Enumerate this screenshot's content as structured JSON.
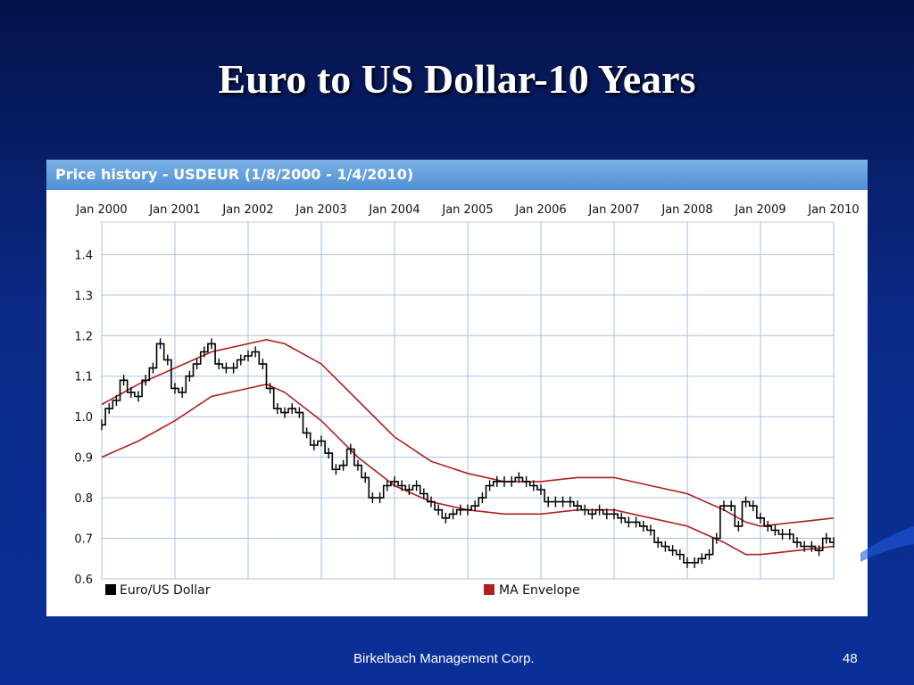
{
  "slide": {
    "title": "Euro to US Dollar-10 Years",
    "footer": "Birkelbach Management Corp.",
    "page_number": "48"
  },
  "colors": {
    "background": "#0b2a86",
    "header_bar": "#5b98d8",
    "price_line": "#000000",
    "envelope": "#b0201f",
    "grid": "#a9c2e4"
  },
  "chart_data": {
    "type": "line",
    "title": "Price history - USDEUR (1/8/2000 - 1/4/2010)",
    "x_tick_labels": [
      "Jan 2000",
      "Jan 2001",
      "Jan 2002",
      "Jan 2003",
      "Jan 2004",
      "Jan 2005",
      "Jan 2006",
      "Jan 2007",
      "Jan 2008",
      "Jan 2009",
      "Jan 2010"
    ],
    "y_tick_labels": [
      "1.4",
      "1.3",
      "1.2",
      "1.1",
      "1.0",
      "0.9",
      "0.8",
      "0.7",
      "0.6"
    ],
    "y_ticks": [
      1.4,
      1.3,
      1.2,
      1.1,
      1.0,
      0.9,
      0.8,
      0.7,
      0.6
    ],
    "xlim": [
      2000.0,
      2010.0
    ],
    "ylim": [
      0.6,
      1.48
    ],
    "grid": true,
    "legend_position": "bottom",
    "series": [
      {
        "name": "Euro/US Dollar",
        "color": "#000000",
        "x": [
          2000.0,
          2000.1,
          2000.2,
          2000.3,
          2000.4,
          2000.5,
          2000.6,
          2000.7,
          2000.8,
          2000.9,
          2001.0,
          2001.1,
          2001.2,
          2001.3,
          2001.4,
          2001.5,
          2001.6,
          2001.7,
          2001.8,
          2001.9,
          2002.0,
          2002.1,
          2002.2,
          2002.3,
          2002.4,
          2002.5,
          2002.6,
          2002.7,
          2002.8,
          2002.9,
          2003.0,
          2003.1,
          2003.2,
          2003.3,
          2003.4,
          2003.5,
          2003.6,
          2003.7,
          2003.8,
          2003.9,
          2004.0,
          2004.1,
          2004.2,
          2004.3,
          2004.4,
          2004.5,
          2004.6,
          2004.7,
          2004.8,
          2004.9,
          2005.0,
          2005.1,
          2005.2,
          2005.3,
          2005.4,
          2005.5,
          2005.6,
          2005.7,
          2005.8,
          2005.9,
          2006.0,
          2006.1,
          2006.2,
          2006.3,
          2006.4,
          2006.5,
          2006.6,
          2006.7,
          2006.8,
          2006.9,
          2007.0,
          2007.1,
          2007.2,
          2007.3,
          2007.4,
          2007.5,
          2007.6,
          2007.7,
          2007.8,
          2007.9,
          2008.0,
          2008.1,
          2008.2,
          2008.3,
          2008.4,
          2008.5,
          2008.6,
          2008.7,
          2008.8,
          2008.9,
          2009.0,
          2009.1,
          2009.2,
          2009.3,
          2009.4,
          2009.5,
          2009.6,
          2009.7,
          2009.8,
          2009.9,
          2010.0
        ],
        "values": [
          0.98,
          1.02,
          1.04,
          1.09,
          1.06,
          1.05,
          1.09,
          1.12,
          1.18,
          1.14,
          1.07,
          1.06,
          1.1,
          1.13,
          1.16,
          1.18,
          1.13,
          1.12,
          1.12,
          1.14,
          1.15,
          1.16,
          1.13,
          1.07,
          1.02,
          1.01,
          1.02,
          1.01,
          0.96,
          0.93,
          0.94,
          0.91,
          0.87,
          0.88,
          0.92,
          0.88,
          0.85,
          0.8,
          0.8,
          0.83,
          0.84,
          0.83,
          0.82,
          0.83,
          0.81,
          0.79,
          0.77,
          0.75,
          0.76,
          0.77,
          0.77,
          0.78,
          0.8,
          0.83,
          0.84,
          0.84,
          0.84,
          0.85,
          0.84,
          0.83,
          0.82,
          0.79,
          0.79,
          0.79,
          0.79,
          0.78,
          0.77,
          0.76,
          0.77,
          0.76,
          0.76,
          0.75,
          0.74,
          0.74,
          0.73,
          0.72,
          0.69,
          0.68,
          0.67,
          0.66,
          0.64,
          0.64,
          0.65,
          0.66,
          0.7,
          0.78,
          0.78,
          0.73,
          0.79,
          0.78,
          0.75,
          0.73,
          0.72,
          0.71,
          0.71,
          0.69,
          0.68,
          0.68,
          0.67,
          0.7,
          0.69
        ]
      },
      {
        "name": "MA Envelope",
        "color": "#b0201f",
        "bands": [
          {
            "x": [
              2000.0,
              2000.5,
              2001.0,
              2001.5,
              2002.0,
              2002.25,
              2002.5,
              2003.0,
              2003.5,
              2004.0,
              2004.5,
              2005.0,
              2005.5,
              2006.0,
              2006.5,
              2007.0,
              2007.5,
              2008.0,
              2008.5,
              2008.8,
              2009.0,
              2009.5,
              2010.0
            ],
            "values": [
              1.03,
              1.08,
              1.12,
              1.16,
              1.18,
              1.19,
              1.18,
              1.13,
              1.04,
              0.95,
              0.89,
              0.86,
              0.84,
              0.84,
              0.85,
              0.85,
              0.83,
              0.81,
              0.77,
              0.74,
              0.73,
              0.74,
              0.75
            ]
          },
          {
            "x": [
              2000.0,
              2000.5,
              2001.0,
              2001.5,
              2002.0,
              2002.25,
              2002.5,
              2003.0,
              2003.5,
              2004.0,
              2004.5,
              2005.0,
              2005.5,
              2006.0,
              2006.5,
              2007.0,
              2007.5,
              2008.0,
              2008.5,
              2008.8,
              2009.0,
              2009.5,
              2010.0
            ],
            "values": [
              0.9,
              0.94,
              0.99,
              1.05,
              1.07,
              1.08,
              1.06,
              0.99,
              0.9,
              0.83,
              0.79,
              0.77,
              0.76,
              0.76,
              0.77,
              0.77,
              0.75,
              0.73,
              0.69,
              0.66,
              0.66,
              0.67,
              0.68
            ]
          }
        ]
      }
    ]
  }
}
